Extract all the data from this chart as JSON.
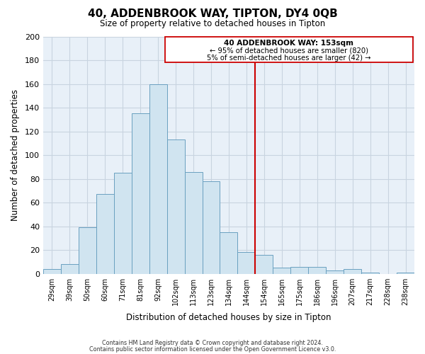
{
  "title": "40, ADDENBROOK WAY, TIPTON, DY4 0QB",
  "subtitle": "Size of property relative to detached houses in Tipton",
  "xlabel": "Distribution of detached houses by size in Tipton",
  "ylabel": "Number of detached properties",
  "bar_labels": [
    "29sqm",
    "39sqm",
    "50sqm",
    "60sqm",
    "71sqm",
    "81sqm",
    "92sqm",
    "102sqm",
    "113sqm",
    "123sqm",
    "134sqm",
    "144sqm",
    "154sqm",
    "165sqm",
    "175sqm",
    "186sqm",
    "196sqm",
    "207sqm",
    "217sqm",
    "228sqm",
    "238sqm"
  ],
  "bar_values": [
    4,
    8,
    39,
    67,
    85,
    135,
    160,
    113,
    86,
    78,
    35,
    18,
    16,
    5,
    6,
    6,
    3,
    4,
    1,
    0,
    1
  ],
  "bar_color": "#d0e4f0",
  "bar_edge_color": "#6aa0c0",
  "ylim": [
    0,
    200
  ],
  "yticks": [
    0,
    20,
    40,
    60,
    80,
    100,
    120,
    140,
    160,
    180,
    200
  ],
  "vline_color": "#cc0000",
  "annotation_title": "40 ADDENBROOK WAY: 153sqm",
  "annotation_line1": "← 95% of detached houses are smaller (820)",
  "annotation_line2": "5% of semi-detached houses are larger (42) →",
  "footnote1": "Contains HM Land Registry data © Crown copyright and database right 2024.",
  "footnote2": "Contains public sector information licensed under the Open Government Licence v3.0.",
  "bg_color": "#ffffff",
  "plot_bg_color": "#e8f0f8",
  "grid_color": "#c8d4e0"
}
